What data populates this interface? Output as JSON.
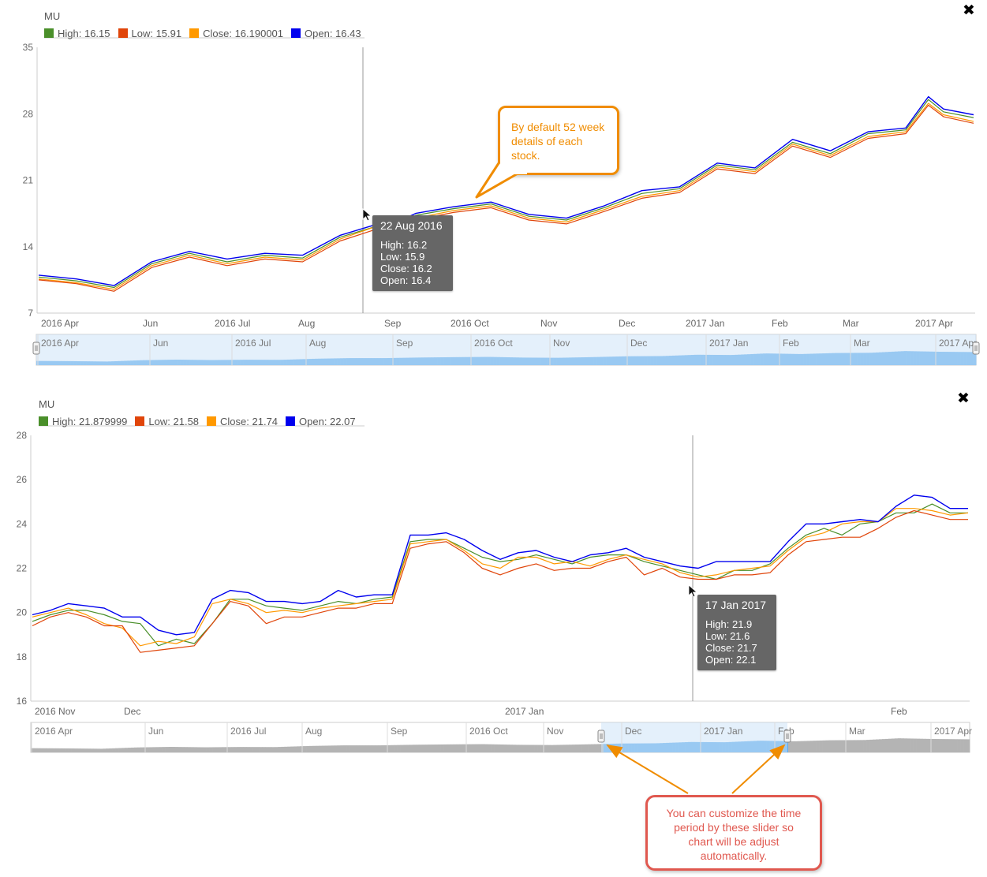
{
  "colors": {
    "high": "#4a8f2a",
    "low": "#e0450a",
    "close": "#ff9900",
    "open": "#0000ee",
    "navigator_fill": "#5aa9ec",
    "navigator_band": "#cde4f7",
    "navigator_gray": "#b4b4b4"
  },
  "close_icon": "close-icon",
  "callouts": {
    "top": "By default 52 week details of each stock.",
    "bottom": "You can customize the time period by these slider so chart will be adjust automatically."
  },
  "chart_data": [
    {
      "type": "line",
      "symbol": "MU",
      "legend": [
        {
          "key": "high",
          "label": "High: 16.15"
        },
        {
          "key": "low",
          "label": "Low: 15.91"
        },
        {
          "key": "close",
          "label": "Close: 16.190001"
        },
        {
          "key": "open",
          "label": "Open: 16.43"
        }
      ],
      "ylim": [
        7,
        35
      ],
      "yticks": [
        "35",
        "28",
        "21",
        "14",
        "7"
      ],
      "xticks": [
        "2016 Apr",
        "Jun",
        "2016 Jul",
        "Aug",
        "Sep",
        "2016 Oct",
        "Nov",
        "Dec",
        "2017 Jan",
        "Feb",
        "Mar",
        "2017 Apr"
      ],
      "xtick_months": [
        0.0,
        2.0,
        3.0,
        4.0,
        5.1,
        6.0,
        7.0,
        8.0,
        9.0,
        10.0,
        11.0,
        12.0
      ],
      "x": [
        0,
        0.5,
        1,
        1.5,
        2,
        2.5,
        3,
        3.5,
        4,
        4.5,
        4.7,
        5,
        5.5,
        6,
        6.5,
        7,
        7.5,
        8,
        8.5,
        9,
        9.5,
        10,
        10.5,
        11,
        11.5,
        11.8,
        12,
        12.4
      ],
      "series": [
        {
          "key": "open",
          "values": [
            11,
            10.6,
            9.9,
            12.4,
            13.5,
            12.7,
            13.3,
            13.1,
            15.2,
            16.4,
            16.4,
            17.5,
            18.2,
            18.7,
            17.4,
            17.0,
            18.3,
            19.9,
            20.3,
            22.8,
            22.3,
            25.3,
            24.1,
            26.1,
            26.5,
            29.8,
            28.5,
            27.9
          ]
        },
        {
          "key": "high",
          "values": [
            10.8,
            10.4,
            9.7,
            12.2,
            13.3,
            12.4,
            13.1,
            12.8,
            15.0,
            16.2,
            16.2,
            17.3,
            18.0,
            18.5,
            17.2,
            16.8,
            18.1,
            19.6,
            20.1,
            22.6,
            22.1,
            25.0,
            23.8,
            25.9,
            26.3,
            29.5,
            28.2,
            27.6
          ]
        },
        {
          "key": "close",
          "values": [
            10.6,
            10.2,
            9.5,
            12.0,
            13.1,
            12.2,
            12.9,
            12.6,
            14.8,
            16.2,
            16.2,
            17.0,
            17.8,
            18.3,
            17.0,
            16.6,
            17.9,
            19.3,
            19.9,
            22.4,
            21.9,
            24.8,
            23.6,
            25.6,
            26.1,
            29.1,
            27.9,
            27.2
          ]
        },
        {
          "key": "low",
          "values": [
            10.5,
            10.1,
            9.3,
            11.8,
            12.9,
            12.0,
            12.7,
            12.4,
            14.6,
            15.9,
            15.9,
            16.8,
            17.6,
            18.1,
            16.8,
            16.4,
            17.7,
            19.1,
            19.7,
            22.2,
            21.7,
            24.6,
            23.4,
            25.4,
            25.9,
            28.9,
            27.7,
            27.0
          ]
        }
      ],
      "navigator_ticks": [
        "2016 Apr",
        "Jun",
        "2016 Jul",
        "Aug",
        "Sep",
        "2016 Oct",
        "Nov",
        "Dec",
        "2017 Jan",
        "Feb",
        "Mar",
        "2017 Apr"
      ],
      "tooltip": {
        "date": "22 Aug 2016",
        "rows": [
          "High: 16.2",
          "Low: 15.9",
          "Close: 16.2",
          "Open: 16.4"
        ]
      }
    },
    {
      "type": "line",
      "symbol": "MU",
      "legend": [
        {
          "key": "high",
          "label": "High: 21.879999"
        },
        {
          "key": "low",
          "label": "Low: 21.58"
        },
        {
          "key": "close",
          "label": "Close: 21.74"
        },
        {
          "key": "open",
          "label": "Open: 22.07"
        }
      ],
      "ylim": [
        16,
        28
      ],
      "yticks": [
        "28",
        "26",
        "24",
        "22",
        "20",
        "18",
        "16"
      ],
      "xticks": [
        "2016 Nov",
        "Dec",
        "2017 Jan",
        "Feb"
      ],
      "xtick_index": [
        0,
        5.3,
        27.2,
        47.3
      ],
      "x": [
        0,
        1,
        2,
        3,
        4,
        5,
        6,
        7,
        8,
        9,
        10,
        11,
        12,
        13,
        14,
        15,
        16,
        17,
        18,
        19,
        20,
        21,
        22,
        23,
        24,
        25,
        26,
        27,
        28,
        29,
        30,
        31,
        32,
        33,
        34,
        35,
        36,
        37,
        38,
        39,
        40,
        41,
        42,
        43,
        44,
        45,
        46,
        47,
        48,
        49,
        50,
        51,
        52
      ],
      "series": [
        {
          "key": "open",
          "values": [
            19.9,
            20.1,
            20.4,
            20.3,
            20.2,
            19.8,
            19.8,
            19.2,
            19.0,
            19.1,
            20.6,
            21.0,
            20.9,
            20.5,
            20.5,
            20.4,
            20.5,
            21.0,
            20.7,
            20.8,
            20.8,
            23.5,
            23.5,
            23.6,
            23.3,
            22.8,
            22.4,
            22.7,
            22.8,
            22.5,
            22.3,
            22.6,
            22.7,
            22.9,
            22.5,
            22.3,
            22.1,
            22.0,
            22.3,
            22.3,
            22.3,
            22.3,
            23.2,
            24.0,
            24.0,
            24.1,
            24.2,
            24.1,
            24.8,
            25.3,
            25.2,
            24.7,
            24.7
          ]
        },
        {
          "key": "high",
          "values": [
            19.6,
            19.9,
            20.1,
            20.1,
            19.9,
            19.6,
            19.5,
            18.5,
            18.8,
            18.6,
            19.5,
            20.6,
            20.6,
            20.3,
            20.2,
            20.1,
            20.3,
            20.5,
            20.4,
            20.6,
            20.7,
            23.2,
            23.3,
            23.3,
            22.9,
            22.5,
            22.3,
            22.4,
            22.6,
            22.4,
            22.2,
            22.5,
            22.6,
            22.6,
            22.3,
            22.1,
            21.9,
            21.7,
            21.5,
            21.9,
            21.9,
            22.2,
            22.9,
            23.5,
            23.8,
            23.5,
            24.0,
            24.1,
            24.5,
            24.5,
            24.9,
            24.5,
            24.5
          ]
        },
        {
          "key": "close",
          "values": [
            19.8,
            20.0,
            20.2,
            19.9,
            19.5,
            19.3,
            18.5,
            18.7,
            18.6,
            18.9,
            20.4,
            20.6,
            20.4,
            20.0,
            20.1,
            20.0,
            20.2,
            20.3,
            20.4,
            20.5,
            20.6,
            23.1,
            23.2,
            23.3,
            22.8,
            22.2,
            22.0,
            22.5,
            22.5,
            22.2,
            22.3,
            22.1,
            22.4,
            22.6,
            22.4,
            22.2,
            21.8,
            21.6,
            21.7,
            21.9,
            22.0,
            22.1,
            22.8,
            23.4,
            23.6,
            24.0,
            24.1,
            24.1,
            24.7,
            24.7,
            24.6,
            24.4,
            24.5
          ]
        },
        {
          "key": "low",
          "values": [
            19.4,
            19.8,
            20.0,
            19.8,
            19.4,
            19.4,
            18.2,
            18.3,
            18.4,
            18.5,
            19.5,
            20.5,
            20.3,
            19.5,
            19.8,
            19.8,
            20.0,
            20.2,
            20.2,
            20.4,
            20.4,
            22.9,
            23.1,
            23.2,
            22.7,
            22.0,
            21.7,
            22.0,
            22.2,
            21.9,
            22.0,
            22.0,
            22.3,
            22.5,
            21.7,
            22.0,
            21.6,
            21.5,
            21.5,
            21.7,
            21.7,
            21.8,
            22.6,
            23.2,
            23.3,
            23.4,
            23.4,
            23.8,
            24.3,
            24.6,
            24.4,
            24.2,
            24.2
          ]
        }
      ],
      "navigator_ticks": [
        "2016 Apr",
        "Jun",
        "2016 Jul",
        "Aug",
        "Sep",
        "2016 Oct",
        "Nov",
        "Dec",
        "2017 Jan",
        "Feb",
        "Mar",
        "2017 Apr"
      ],
      "navigator_selection": [
        "2016 Nov",
        "2017 Feb"
      ],
      "tooltip": {
        "date": "17 Jan 2017",
        "rows": [
          "High: 21.9",
          "Low: 21.6",
          "Close: 21.7",
          "Open: 22.1"
        ]
      }
    }
  ]
}
